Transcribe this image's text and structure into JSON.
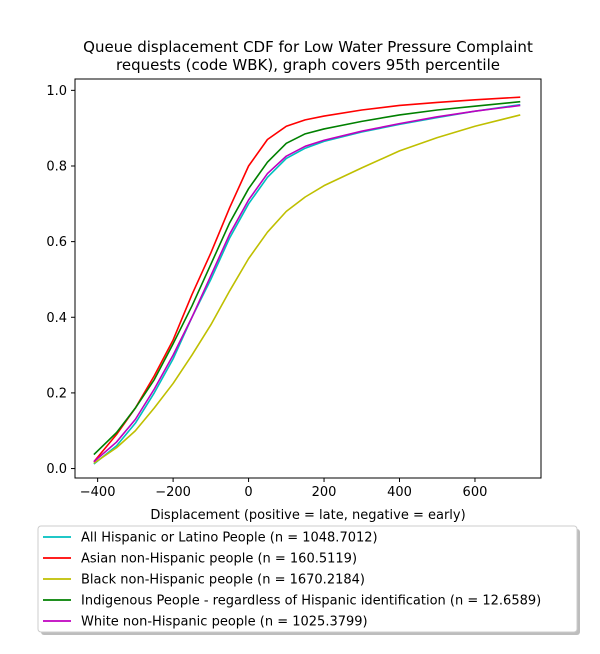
{
  "chart_data": {
    "type": "line",
    "title": "Queue displacement CDF for Low Water Pressure Complaint requests (code WBK), graph covers 95th percentile",
    "title_lines": [
      "Queue displacement CDF for Low Water Pressure Complaint",
      "requests (code WBK), graph covers 95th percentile"
    ],
    "xlabel": "Displacement (positive = late, negative = early)",
    "ylabel": "",
    "xlim": [
      -460,
      775
    ],
    "ylim": [
      -0.025,
      1.03
    ],
    "xticks": [
      -400,
      -200,
      0,
      200,
      400,
      600
    ],
    "yticks": [
      0.0,
      0.2,
      0.4,
      0.6,
      0.8,
      1.0
    ],
    "xtick_labels": [
      "−400",
      "−200",
      "0",
      "200",
      "400",
      "600"
    ],
    "ytick_labels": [
      "0.0",
      "0.2",
      "0.4",
      "0.6",
      "0.8",
      "1.0"
    ],
    "grid": false,
    "legend_placement": "below plot",
    "x": [
      -410,
      -350,
      -300,
      -250,
      -200,
      -150,
      -100,
      -50,
      0,
      50,
      100,
      150,
      200,
      300,
      400,
      500,
      600,
      720
    ],
    "series": [
      {
        "name": "All Hispanic or Latino People (n = 1048.7012)",
        "color": "#00bfbf",
        "values": [
          0.012,
          0.06,
          0.12,
          0.2,
          0.29,
          0.4,
          0.5,
          0.61,
          0.7,
          0.77,
          0.82,
          0.847,
          0.865,
          0.89,
          0.91,
          0.928,
          0.945,
          0.962
        ]
      },
      {
        "name": "Asian non-Hispanic people (n = 160.5119)",
        "color": "#ff0000",
        "values": [
          0.018,
          0.09,
          0.16,
          0.245,
          0.34,
          0.46,
          0.57,
          0.69,
          0.8,
          0.87,
          0.905,
          0.922,
          0.932,
          0.948,
          0.96,
          0.968,
          0.975,
          0.982
        ]
      },
      {
        "name": "Black non-Hispanic people (n = 1670.2184)",
        "color": "#bfbf00",
        "values": [
          0.014,
          0.055,
          0.1,
          0.16,
          0.225,
          0.3,
          0.38,
          0.47,
          0.555,
          0.625,
          0.68,
          0.718,
          0.748,
          0.795,
          0.84,
          0.875,
          0.905,
          0.935
        ]
      },
      {
        "name": "Indigenous People - regardless of Hispanic identification (n = 12.6589)",
        "color": "#008000",
        "values": [
          0.037,
          0.095,
          0.16,
          0.235,
          0.33,
          0.43,
          0.54,
          0.65,
          0.74,
          0.81,
          0.86,
          0.885,
          0.898,
          0.918,
          0.935,
          0.948,
          0.958,
          0.97
        ]
      },
      {
        "name": "White non-Hispanic people (n = 1025.3799)",
        "color": "#bf00bf",
        "values": [
          0.018,
          0.07,
          0.13,
          0.21,
          0.3,
          0.4,
          0.51,
          0.62,
          0.71,
          0.78,
          0.826,
          0.852,
          0.868,
          0.892,
          0.912,
          0.93,
          0.945,
          0.96
        ]
      }
    ]
  }
}
